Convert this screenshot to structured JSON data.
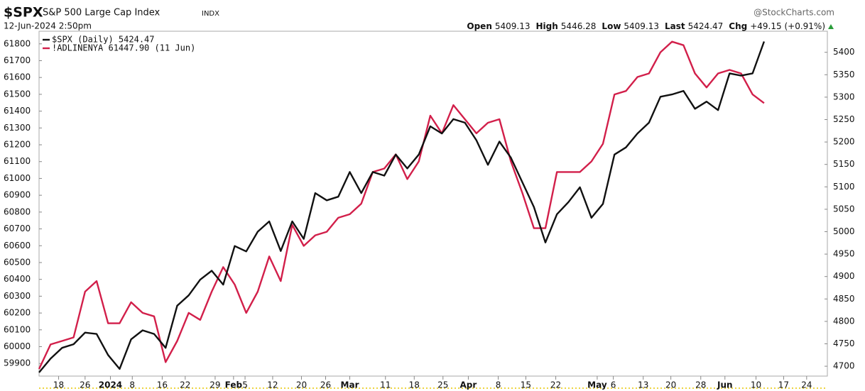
{
  "chart_data": {
    "type": "line",
    "title": "$SPX",
    "subtitle": "S&P 500 Large Cap Index",
    "exchange": "INDX",
    "timestamp": "12-Jun-2024 2:50pm",
    "source": "@StockCharts.com",
    "quote": [
      {
        "label": "Open",
        "value": "5409.13"
      },
      {
        "label": "High",
        "value": "5446.28"
      },
      {
        "label": "Low",
        "value": "5409.13"
      },
      {
        "label": "Last",
        "value": "5424.47"
      },
      {
        "label": "Chg",
        "value": "+49.15 (+0.91%)"
      }
    ],
    "xlim": [
      0,
      68.5
    ],
    "xticks": [
      {
        "value": 1.7,
        "label": "18"
      },
      {
        "value": 4.0,
        "label": "26"
      },
      {
        "value": 6.2,
        "label": "2024"
      },
      {
        "value": 8.1,
        "label": "8"
      },
      {
        "value": 10.7,
        "label": "16"
      },
      {
        "value": 12.7,
        "label": "22"
      },
      {
        "value": 15.3,
        "label": "29"
      },
      {
        "value": 16.9,
        "label": "Feb"
      },
      {
        "value": 17.9,
        "label": "5"
      },
      {
        "value": 20.3,
        "label": "12"
      },
      {
        "value": 22.8,
        "label": "20"
      },
      {
        "value": 24.9,
        "label": "26"
      },
      {
        "value": 27.0,
        "label": "Mar"
      },
      {
        "value": 30.1,
        "label": "11"
      },
      {
        "value": 32.6,
        "label": "18"
      },
      {
        "value": 35.1,
        "label": "25"
      },
      {
        "value": 37.3,
        "label": "Apr"
      },
      {
        "value": 39.9,
        "label": "8"
      },
      {
        "value": 42.3,
        "label": "15"
      },
      {
        "value": 44.9,
        "label": "22"
      },
      {
        "value": 48.5,
        "label": "May"
      },
      {
        "value": 49.9,
        "label": "6"
      },
      {
        "value": 52.5,
        "label": "13"
      },
      {
        "value": 54.9,
        "label": "20"
      },
      {
        "value": 57.5,
        "label": "28"
      },
      {
        "value": 59.6,
        "label": "Jun"
      },
      {
        "value": 62.3,
        "label": "10"
      },
      {
        "value": 64.7,
        "label": "17"
      },
      {
        "value": 66.7,
        "label": "24"
      }
    ],
    "ylim": [
      59825,
      61875
    ],
    "yticks": [
      59900,
      60000,
      60100,
      60200,
      60300,
      60400,
      60500,
      60600,
      60700,
      60800,
      60900,
      61000,
      61100,
      61200,
      61300,
      61400,
      61500,
      61600,
      61700,
      61800
    ],
    "y2lim": [
      4678,
      5447
    ],
    "y2ticks": [
      4700,
      4750,
      4800,
      4850,
      4900,
      4950,
      5000,
      5050,
      5100,
      5150,
      5200,
      5250,
      5300,
      5350,
      5400
    ],
    "grid": false,
    "legend": "top-left",
    "series": [
      {
        "name": "$SPX (Daily) 5424.47",
        "color": "#111111",
        "axis": "y2",
        "values": [
          4686,
          4717,
          4741,
          4749,
          4775,
          4772,
          4725,
          4694,
          4760,
          4780,
          4772,
          4741,
          4835,
          4858,
          4893,
          4913,
          4882,
          4968,
          4956,
          5000,
          5023,
          4957,
          5023,
          4984,
          5086,
          5070,
          5078,
          5133,
          5086,
          5133,
          5125,
          5172,
          5141,
          5172,
          5235,
          5219,
          5251,
          5243,
          5204,
          5149,
          5201,
          5165,
          5110,
          5055,
          4976,
          5039,
          5066,
          5099,
          5031,
          5062,
          5172,
          5188,
          5219,
          5243,
          5301,
          5306,
          5314,
          5274,
          5290,
          5271,
          5353,
          5348,
          5353,
          5424
        ]
      },
      {
        "name": "!ADLINENYA 61447.90 (11 Jun)",
        "color": "#d21f4a",
        "axis": "y",
        "values": [
          59867,
          60013,
          60034,
          60055,
          60327,
          60390,
          60139,
          60139,
          60264,
          60201,
          60180,
          59908,
          60034,
          60201,
          60159,
          60327,
          60473,
          60369,
          60201,
          60327,
          60536,
          60390,
          60724,
          60599,
          60662,
          60683,
          60766,
          60787,
          60850,
          61038,
          61059,
          61143,
          60996,
          61101,
          61373,
          61268,
          61436,
          61352,
          61268,
          61331,
          61352,
          61101,
          60913,
          60704,
          60704,
          61038,
          61038,
          61038,
          61101,
          61206,
          61499,
          61520,
          61603,
          61624,
          61750,
          61813,
          61792,
          61624,
          61541,
          61624,
          61645,
          61624,
          61499,
          61447.9
        ]
      }
    ]
  }
}
